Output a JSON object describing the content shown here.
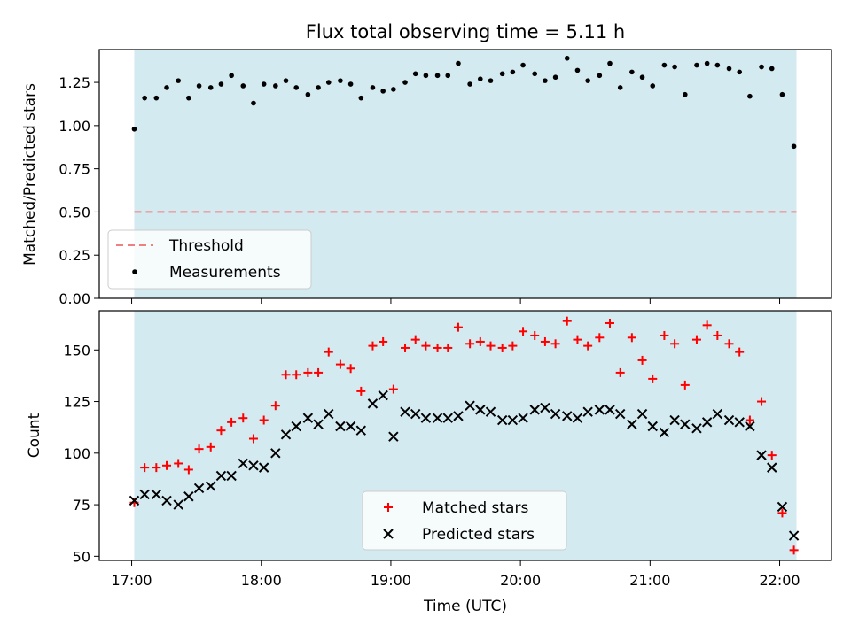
{
  "chart_data": {
    "title": "Flux total observing time = 5.11 h",
    "xlabel": "Time (UTC)",
    "x_unit": "UTC hour of day",
    "xlim": [
      16.75,
      22.4
    ],
    "xticks": [
      17,
      18,
      19,
      20,
      21,
      22
    ],
    "xtick_labels": [
      "17:00",
      "18:00",
      "19:00",
      "20:00",
      "21:00",
      "22:00"
    ],
    "shaded_interval": [
      17.02,
      22.13
    ],
    "shade_color": "#d3eaf0",
    "panels": [
      {
        "type": "scatter",
        "ylabel": "Matched/Predicted stars",
        "ylim": [
          0,
          1.44
        ],
        "yticks": [
          0,
          0.25,
          0.5,
          0.75,
          1.0,
          1.25
        ],
        "ytick_labels": [
          "0.00",
          "0.25",
          "0.50",
          "0.75",
          "1.00",
          "1.25"
        ],
        "legend_position": "lower-left",
        "threshold": {
          "name": "Threshold",
          "value": 0.5,
          "color": "#f08080"
        },
        "series": [
          {
            "name": "Measurements",
            "marker": "dot",
            "color": "#000000",
            "x": [
              17.02,
              17.1,
              17.19,
              17.27,
              17.36,
              17.44,
              17.52,
              17.61,
              17.69,
              17.77,
              17.86,
              17.94,
              18.02,
              18.11,
              18.19,
              18.27,
              18.36,
              18.44,
              18.52,
              18.61,
              18.69,
              18.77,
              18.86,
              18.94,
              19.02,
              19.11,
              19.19,
              19.27,
              19.36,
              19.44,
              19.52,
              19.61,
              19.69,
              19.77,
              19.86,
              19.94,
              20.02,
              20.11,
              20.19,
              20.27,
              20.36,
              20.44,
              20.52,
              20.61,
              20.69,
              20.77,
              20.86,
              20.94,
              21.02,
              21.11,
              21.19,
              21.27,
              21.36,
              21.44,
              21.52,
              21.61,
              21.69,
              21.77,
              21.86,
              21.94,
              22.02,
              22.11
            ],
            "y": [
              0.98,
              1.16,
              1.16,
              1.22,
              1.26,
              1.16,
              1.23,
              1.22,
              1.24,
              1.29,
              1.23,
              1.13,
              1.24,
              1.23,
              1.26,
              1.22,
              1.18,
              1.22,
              1.25,
              1.26,
              1.24,
              1.16,
              1.22,
              1.2,
              1.21,
              1.25,
              1.3,
              1.29,
              1.29,
              1.29,
              1.36,
              1.24,
              1.27,
              1.26,
              1.3,
              1.31,
              1.35,
              1.3,
              1.26,
              1.28,
              1.39,
              1.32,
              1.26,
              1.29,
              1.36,
              1.22,
              1.31,
              1.28,
              1.23,
              1.35,
              1.34,
              1.18,
              1.35,
              1.36,
              1.35,
              1.33,
              1.31,
              1.17,
              1.34,
              1.33,
              1.18,
              0.88
            ]
          }
        ]
      },
      {
        "type": "scatter",
        "ylabel": "Count",
        "ylim": [
          48,
          169
        ],
        "yticks": [
          50,
          75,
          100,
          125,
          150
        ],
        "ytick_labels": [
          "50",
          "75",
          "100",
          "125",
          "150"
        ],
        "legend_position": "lower-center",
        "series": [
          {
            "name": "Matched stars",
            "marker": "plus",
            "color": "#ff0000",
            "x": [
              17.02,
              17.1,
              17.19,
              17.27,
              17.36,
              17.44,
              17.52,
              17.61,
              17.69,
              17.77,
              17.86,
              17.94,
              18.02,
              18.11,
              18.19,
              18.27,
              18.36,
              18.44,
              18.52,
              18.61,
              18.69,
              18.77,
              18.86,
              18.94,
              19.02,
              19.11,
              19.19,
              19.27,
              19.36,
              19.44,
              19.52,
              19.61,
              19.69,
              19.77,
              19.86,
              19.94,
              20.02,
              20.11,
              20.19,
              20.27,
              20.36,
              20.44,
              20.52,
              20.61,
              20.69,
              20.77,
              20.86,
              20.94,
              21.02,
              21.11,
              21.19,
              21.27,
              21.36,
              21.44,
              21.52,
              21.61,
              21.69,
              21.77,
              21.86,
              21.94,
              22.02,
              22.11
            ],
            "y": [
              76,
              93,
              93,
              94,
              95,
              92,
              102,
              103,
              111,
              115,
              117,
              107,
              116,
              123,
              138,
              138,
              139,
              139,
              149,
              143,
              141,
              130,
              152,
              154,
              131,
              151,
              155,
              152,
              151,
              151,
              161,
              153,
              154,
              152,
              151,
              152,
              159,
              157,
              154,
              153,
              164,
              155,
              152,
              156,
              163,
              139,
              156,
              145,
              136,
              157,
              153,
              133,
              155,
              162,
              157,
              153,
              149,
              116,
              125,
              99,
              71,
              53
            ]
          },
          {
            "name": "Predicted stars",
            "marker": "x",
            "color": "#000000",
            "x": [
              17.02,
              17.1,
              17.19,
              17.27,
              17.36,
              17.44,
              17.52,
              17.61,
              17.69,
              17.77,
              17.86,
              17.94,
              18.02,
              18.11,
              18.19,
              18.27,
              18.36,
              18.44,
              18.52,
              18.61,
              18.69,
              18.77,
              18.86,
              18.94,
              19.02,
              19.11,
              19.19,
              19.27,
              19.36,
              19.44,
              19.52,
              19.61,
              19.69,
              19.77,
              19.86,
              19.94,
              20.02,
              20.11,
              20.19,
              20.27,
              20.36,
              20.44,
              20.52,
              20.61,
              20.69,
              20.77,
              20.86,
              20.94,
              21.02,
              21.11,
              21.19,
              21.27,
              21.36,
              21.44,
              21.52,
              21.61,
              21.69,
              21.77,
              21.86,
              21.94,
              22.02,
              22.11
            ],
            "y": [
              77,
              80,
              80,
              77,
              75,
              79,
              83,
              84,
              89,
              89,
              95,
              94,
              93,
              100,
              109,
              113,
              117,
              114,
              119,
              113,
              113,
              111,
              124,
              128,
              108,
              120,
              119,
              117,
              117,
              117,
              118,
              123,
              121,
              120,
              116,
              116,
              117,
              121,
              122,
              119,
              118,
              117,
              120,
              121,
              121,
              119,
              114,
              119,
              113,
              110,
              116,
              114,
              112,
              115,
              119,
              116,
              115,
              113,
              99,
              93,
              74,
              60
            ]
          }
        ]
      }
    ]
  }
}
